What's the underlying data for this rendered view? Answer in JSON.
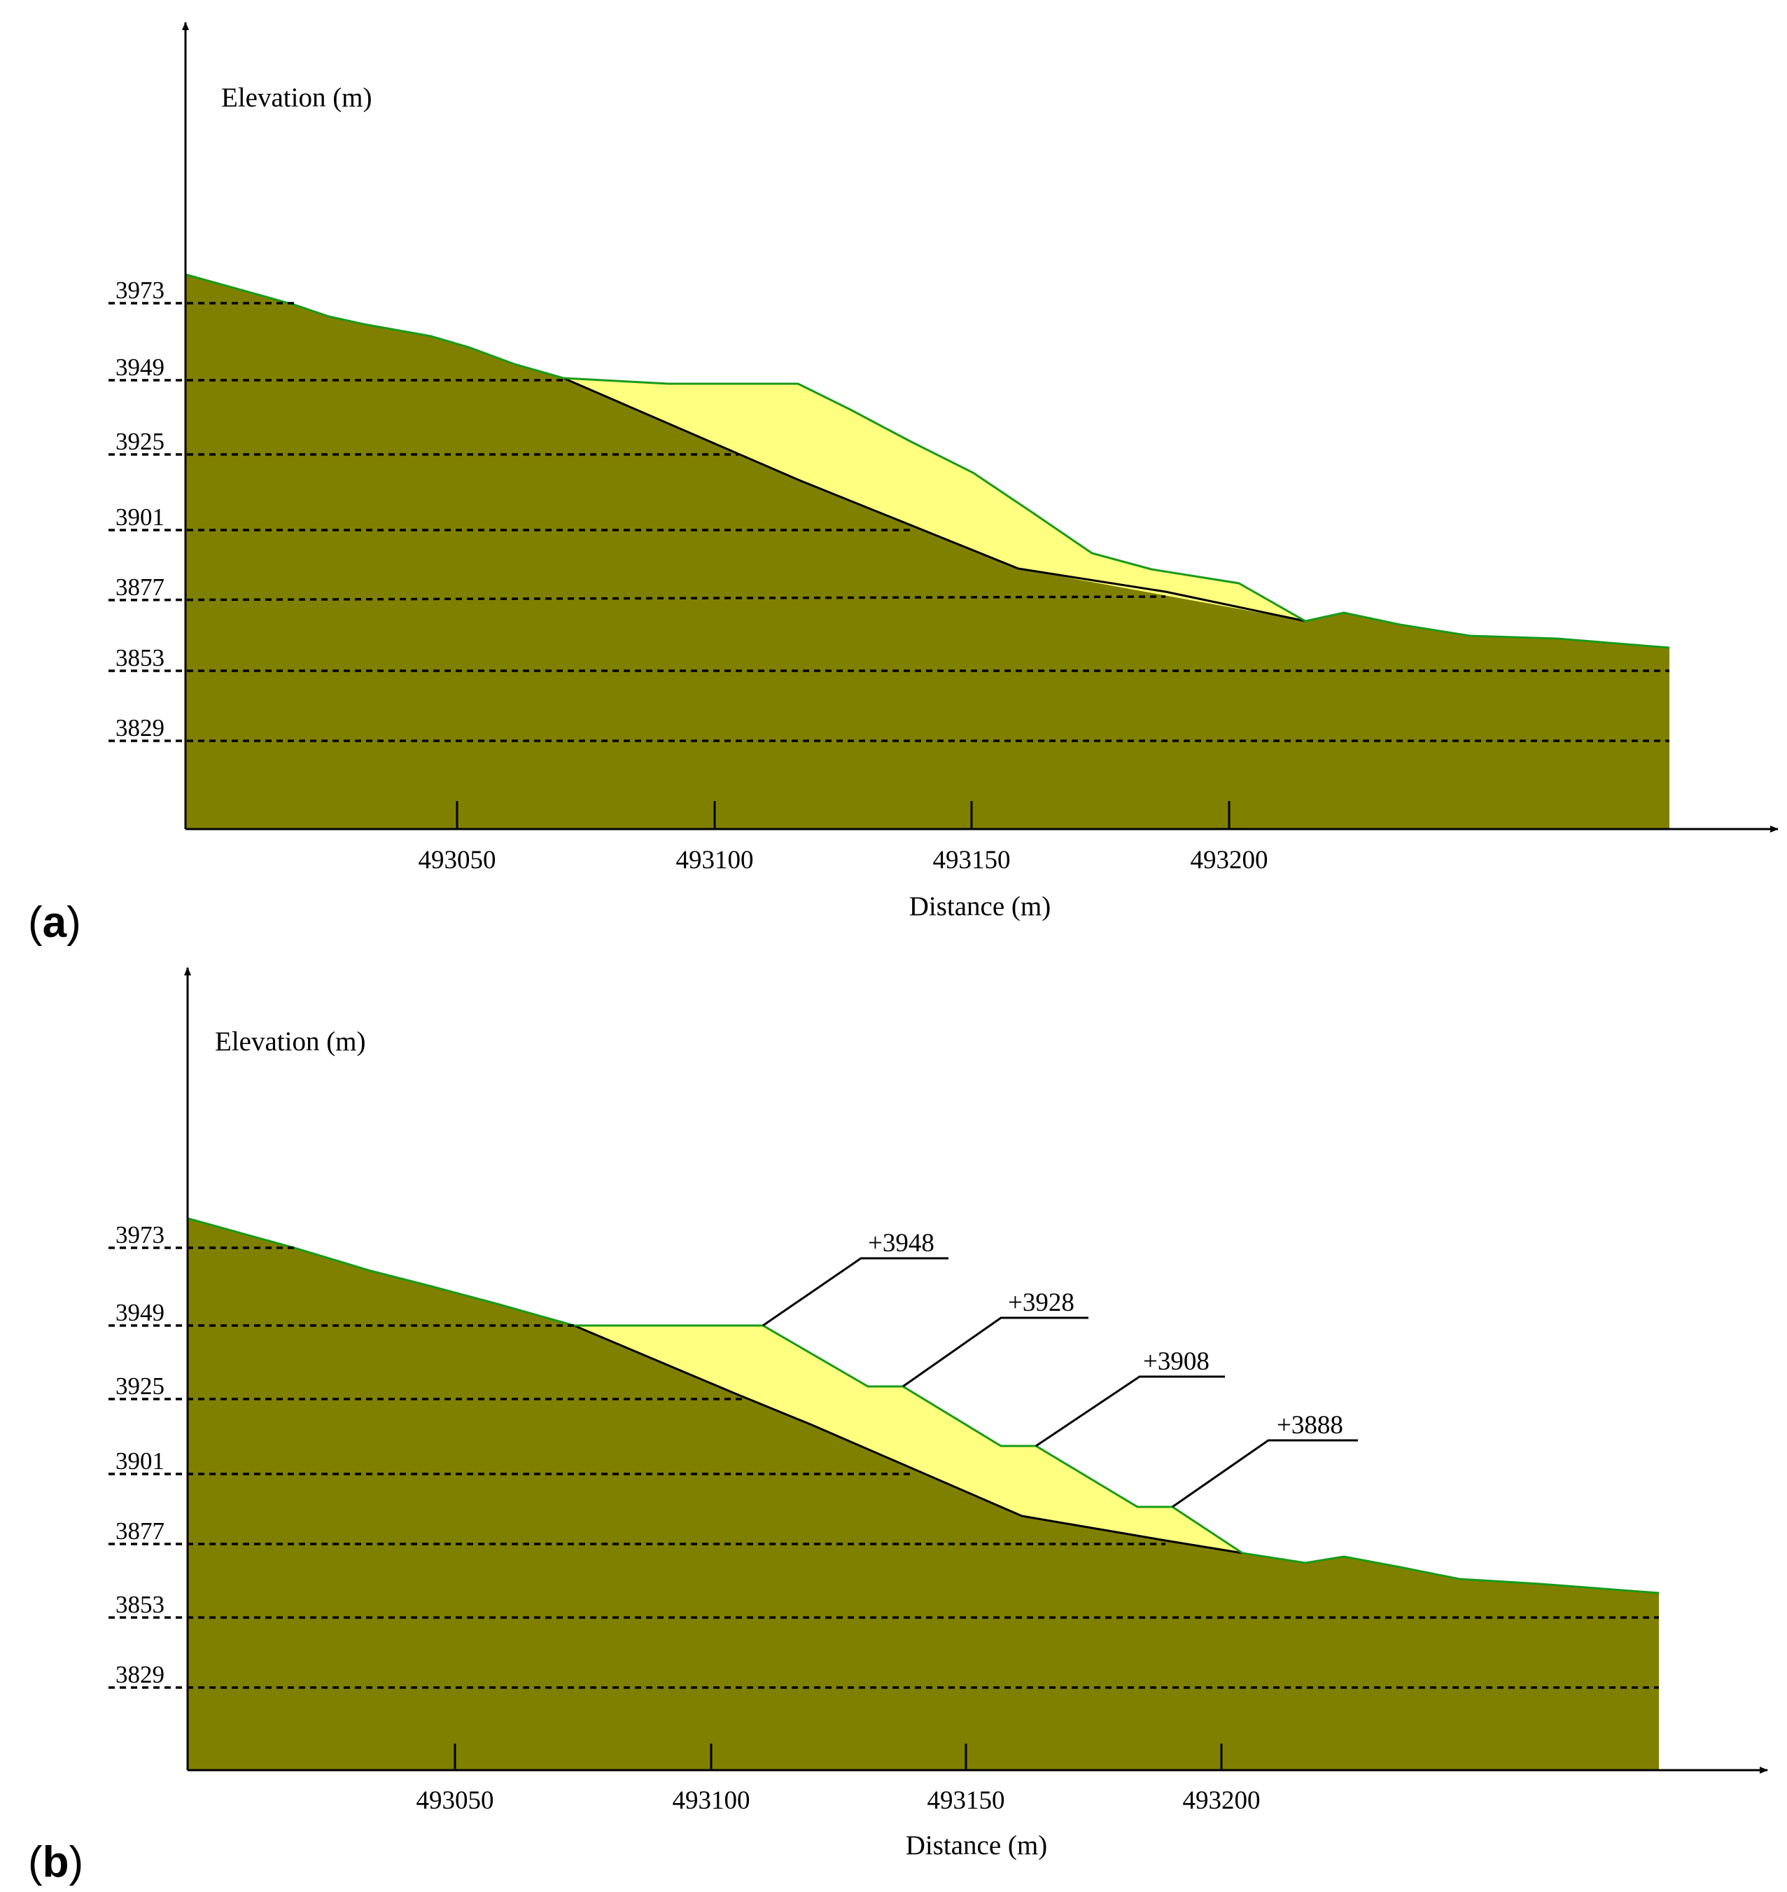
{
  "colors": {
    "ground": "#808000",
    "slide": "#ffff80",
    "outline": "#1a9a1a",
    "ink": "#000000"
  },
  "panels": [
    {
      "label": "(a)",
      "label_parts": {
        "open": "(",
        "letter": "a",
        "close": ")"
      },
      "ylabel": "Elevation (m)",
      "xlabel": "Distance (m)",
      "y_ticks": [
        "3973",
        "3949",
        "3925",
        "3901",
        "3877",
        "3853",
        "3829"
      ],
      "x_ticks": [
        "493050",
        "493100",
        "493150",
        "493200"
      ]
    },
    {
      "label": "(b)",
      "label_parts": {
        "open": "(",
        "letter": "b",
        "close": ")"
      },
      "ylabel": "Elevation (m)",
      "xlabel": "Distance (m)",
      "y_ticks": [
        "3973",
        "3949",
        "3925",
        "3901",
        "3877",
        "3853",
        "3829"
      ],
      "x_ticks": [
        "493050",
        "493100",
        "493150",
        "493200"
      ],
      "bench_labels": [
        "+3948",
        "+3928",
        "+3908",
        "+3888"
      ]
    }
  ]
}
